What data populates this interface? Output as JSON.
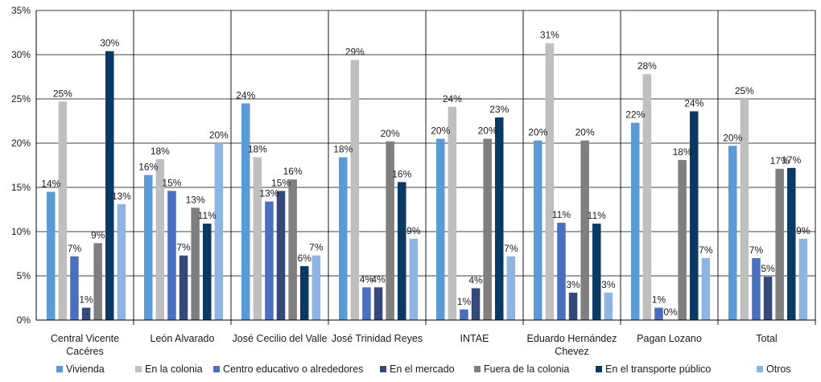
{
  "chart_data": {
    "type": "bar",
    "title": "",
    "xlabel": "",
    "ylabel": "",
    "ylim": [
      0,
      35
    ],
    "yticks": [
      "0%",
      "5%",
      "10%",
      "15%",
      "20%",
      "25%",
      "30%",
      "35%"
    ],
    "grid": true,
    "legend_position": "bottom",
    "categories": [
      [
        "Central Vicente",
        "Cacéres"
      ],
      [
        "León Alvarado"
      ],
      [
        "José Cecilio del Valle"
      ],
      [
        "José Trinidad Reyes"
      ],
      [
        "INTAE"
      ],
      [
        "Eduardo Hernández",
        "Chevez"
      ],
      [
        "Pagan Lozano"
      ],
      [
        "Total"
      ]
    ],
    "series": [
      {
        "name": "Vivienda",
        "color": "#5b9bd5",
        "values": [
          14.5,
          16.4,
          24.5,
          18.4,
          20.5,
          20.3,
          22.3,
          19.7
        ],
        "labels": [
          "14%",
          "16%",
          "24%",
          "18%",
          "20%",
          "20%",
          "22%",
          "20%"
        ]
      },
      {
        "name": "En la colonia",
        "color": "#bfbfbf",
        "values": [
          24.7,
          18.2,
          18.4,
          29.4,
          24.1,
          31.3,
          27.8,
          25.0
        ],
        "labels": [
          "25%",
          "18%",
          "18%",
          "29%",
          "24%",
          "31%",
          "28%",
          "25%"
        ]
      },
      {
        "name": "Centro educativo o alrededores",
        "color": "#4a6fbf",
        "values": [
          7.2,
          14.6,
          13.4,
          3.7,
          1.2,
          11.0,
          1.4,
          7.0
        ],
        "labels": [
          "7%",
          "15%",
          "13%",
          "4%",
          "1%",
          "11%",
          "1%",
          "7%"
        ]
      },
      {
        "name": "En el mercado",
        "color": "#34497a",
        "values": [
          1.4,
          7.3,
          14.6,
          3.7,
          3.6,
          3.1,
          0.0,
          4.9
        ],
        "labels": [
          "1%",
          "7%",
          "15%",
          "4%",
          "4%",
          "3%",
          "0%",
          "5%"
        ]
      },
      {
        "name": "Fuera de la colonia",
        "color": "#7f7f7f",
        "values": [
          8.7,
          12.7,
          15.9,
          20.2,
          20.5,
          20.3,
          18.1,
          17.1
        ],
        "labels": [
          "9%",
          "13%",
          "16%",
          "20%",
          "20%",
          "20%",
          "18%",
          "17%"
        ]
      },
      {
        "name": "En el transporte público",
        "color": "#0a3a63",
        "values": [
          30.4,
          10.9,
          6.1,
          15.6,
          22.9,
          10.9,
          23.6,
          17.2
        ],
        "labels": [
          "30%",
          "11%",
          "6%",
          "16%",
          "23%",
          "11%",
          "24%",
          "17%"
        ]
      },
      {
        "name": "Otros",
        "color": "#8db4e2",
        "values": [
          13.1,
          20.0,
          7.3,
          9.2,
          7.2,
          3.1,
          7.0,
          9.2
        ],
        "labels": [
          "13%",
          "20%",
          "7%",
          "9%",
          "7%",
          "3%",
          "7%",
          "9%"
        ]
      }
    ]
  }
}
